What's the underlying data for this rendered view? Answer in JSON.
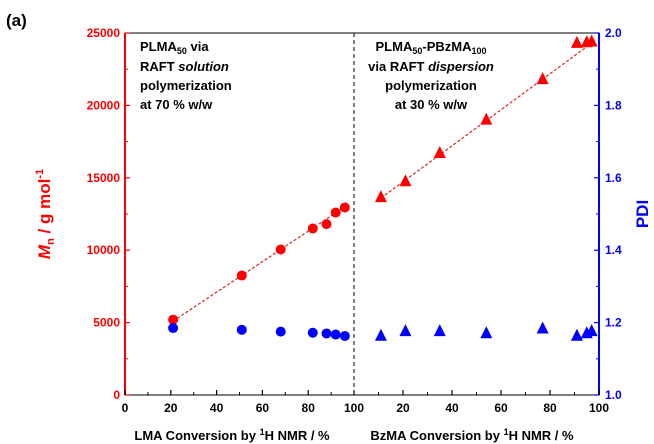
{
  "chart_data": {
    "type": "scatter",
    "panel_label": "(a)",
    "colors": {
      "mn": "#ff0000",
      "pdi": "#0000ff",
      "fit": "#e02020",
      "divider": "#000000"
    },
    "left_axis": {
      "label_main": "M",
      "label_sub": "n",
      "label_rest": " / g mol",
      "label_sup": "-1",
      "ylim": [
        0,
        25000
      ],
      "ticks": [
        0,
        5000,
        10000,
        15000,
        20000,
        25000
      ],
      "tick_labels": [
        "0",
        "5000",
        "10000",
        "15000",
        "20000",
        "25000"
      ]
    },
    "right_axis": {
      "label": "PDI",
      "ylim": [
        1.0,
        2.0
      ],
      "ticks": [
        1.0,
        1.2,
        1.4,
        1.6,
        1.8,
        2.0
      ],
      "tick_labels": [
        "1.0",
        "1.2",
        "1.4",
        "1.6",
        "1.8",
        "2.0"
      ]
    },
    "x_axis": {
      "tick_labels": [
        "0",
        "20",
        "40",
        "60",
        "80",
        "100",
        "20",
        "40",
        "60",
        "80",
        "100"
      ],
      "xlabel_left_pre": "LMA Conversion by ",
      "xlabel_left_sup": "1",
      "xlabel_left_post": "H NMR / %",
      "xlabel_right_pre": "BzMA Conversion by ",
      "xlabel_right_sup": "1",
      "xlabel_right_post": "H NMR / %"
    },
    "annotations": {
      "left": {
        "line1_pre": "PLMA",
        "line1_sub": "50",
        "line1_post": " via",
        "line2_pre": "RAFT ",
        "line2_em": "solution",
        "line3": "polymerization",
        "line4": "at 70 % w/w"
      },
      "right": {
        "line1_pre": "PLMA",
        "line1_sub": "50",
        "line1_mid": "-PBzMA",
        "line1_sub2": "100",
        "line2_pre": "via RAFT ",
        "line2_em": "dispersion",
        "line3": "polymerization",
        "line4": "at 30 % w/w"
      }
    },
    "series": [
      {
        "stage": "LMA",
        "marker": "circle",
        "axis": "left",
        "x": [
          21,
          51,
          68,
          82,
          88,
          92,
          96
        ],
        "values": [
          5200,
          8250,
          10050,
          11500,
          11800,
          12600,
          12950
        ]
      },
      {
        "stage": "LMA",
        "marker": "circle",
        "axis": "right",
        "x": [
          21,
          51,
          68,
          82,
          88,
          92,
          96
        ],
        "values": [
          1.185,
          1.18,
          1.175,
          1.172,
          1.17,
          1.167,
          1.163
        ]
      },
      {
        "stage": "BzMA",
        "marker": "triangle",
        "axis": "left",
        "x": [
          11,
          21,
          35,
          54,
          77,
          91,
          95,
          97
        ],
        "values": [
          13700,
          14800,
          16750,
          19050,
          21850,
          24350,
          24400,
          24450
        ]
      },
      {
        "stage": "BzMA",
        "marker": "triangle",
        "axis": "right",
        "x": [
          11,
          21,
          35,
          54,
          77,
          91,
          95,
          97
        ],
        "values": [
          1.165,
          1.178,
          1.178,
          1.172,
          1.185,
          1.165,
          1.172,
          1.178
        ]
      }
    ],
    "fit_lines": [
      {
        "stage": "LMA",
        "x": [
          21,
          96
        ],
        "values": [
          5100,
          13000
        ]
      },
      {
        "stage": "BzMA",
        "x": [
          11,
          97
        ],
        "values": [
          13600,
          24300
        ]
      }
    ]
  }
}
